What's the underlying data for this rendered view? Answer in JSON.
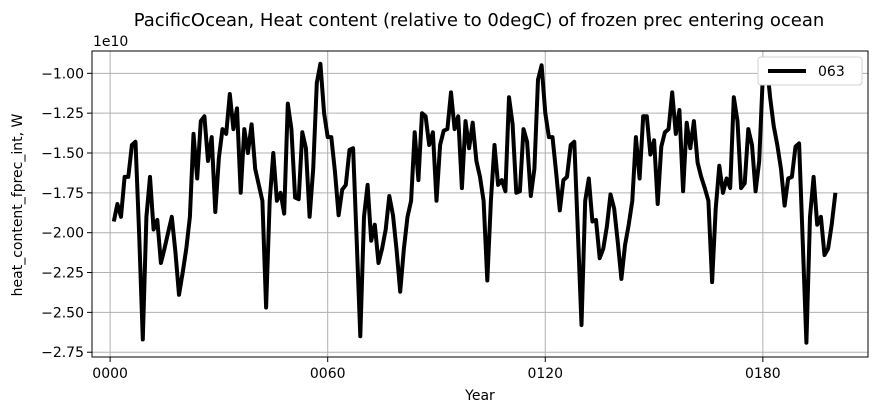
{
  "chart_data": {
    "type": "line",
    "title": "PacificOcean, Heat content (relative to 0degC) of frozen prec entering ocean",
    "xlabel": "Year",
    "ylabel": "heat_content_fprec_int, W",
    "y_offset_label": "1e10",
    "xlim": [
      -5,
      209
    ],
    "ylim": [
      -2.78,
      -0.86
    ],
    "x_ticks": [
      0,
      60,
      120,
      180
    ],
    "x_tick_labels": [
      "0000",
      "0060",
      "0120",
      "0180"
    ],
    "y_ticks": [
      -2.75,
      -2.5,
      -2.25,
      -2.0,
      -1.75,
      -1.5,
      -1.25,
      -1.0
    ],
    "y_tick_labels": [
      "−2.75",
      "−2.50",
      "−2.25",
      "−2.00",
      "−1.75",
      "−1.50",
      "−1.25",
      "−1.00"
    ],
    "grid": true,
    "legend_position": "top-right",
    "series": [
      {
        "name": "063",
        "color": "#000000",
        "x": [
          1,
          2,
          3,
          4,
          5,
          6,
          7,
          8,
          9,
          10,
          11,
          12,
          13,
          14,
          15,
          16,
          17,
          18,
          19,
          20,
          21,
          22,
          23,
          24,
          25,
          26,
          27,
          28,
          29,
          30,
          31,
          32,
          33,
          34,
          35,
          36,
          37,
          38,
          39,
          40,
          41,
          42,
          43,
          44,
          45,
          46,
          47,
          48,
          49,
          50,
          51,
          52,
          53,
          54,
          55,
          56,
          57,
          58,
          59,
          60,
          61,
          62,
          63,
          64,
          65,
          66,
          67,
          68,
          69,
          70,
          71,
          72,
          73,
          74,
          75,
          76,
          77,
          78,
          79,
          80,
          81,
          82,
          83,
          84,
          85,
          86,
          87,
          88,
          89,
          90,
          91,
          92,
          93,
          94,
          95,
          96,
          97,
          98,
          99,
          100,
          101,
          102,
          103,
          104,
          105,
          106,
          107,
          108,
          109,
          110,
          111,
          112,
          113,
          114,
          115,
          116,
          117,
          118,
          119,
          120,
          121,
          122,
          123,
          124,
          125,
          126,
          127,
          128,
          129,
          130,
          131,
          132,
          133,
          134,
          135,
          136,
          137,
          138,
          139,
          140,
          141,
          142,
          143,
          144,
          145,
          146,
          147,
          148,
          149,
          150,
          151,
          152,
          153,
          154,
          155,
          156,
          157,
          158,
          159,
          160,
          161,
          162,
          163,
          164,
          165,
          166,
          167,
          168,
          169,
          170,
          171,
          172,
          173,
          174,
          175,
          176,
          177,
          178,
          179,
          180,
          181,
          182,
          183,
          184,
          185,
          186,
          187,
          188,
          189,
          190,
          191,
          192,
          193,
          194,
          195,
          196,
          197,
          198,
          199,
          200
        ],
        "y": [
          -1.93,
          -1.82,
          -1.9,
          -1.65,
          -1.65,
          -1.45,
          -1.43,
          -2.0,
          -2.67,
          -1.9,
          -1.65,
          -1.98,
          -1.92,
          -2.19,
          -2.1,
          -2.0,
          -1.9,
          -2.12,
          -2.39,
          -2.25,
          -2.1,
          -1.9,
          -1.38,
          -1.66,
          -1.3,
          -1.27,
          -1.55,
          -1.4,
          -1.87,
          -1.53,
          -1.35,
          -1.38,
          -1.13,
          -1.35,
          -1.22,
          -1.75,
          -1.35,
          -1.5,
          -1.32,
          -1.6,
          -1.7,
          -1.8,
          -2.47,
          -1.8,
          -1.5,
          -1.8,
          -1.75,
          -1.88,
          -1.19,
          -1.35,
          -1.78,
          -1.79,
          -1.37,
          -1.47,
          -1.9,
          -1.6,
          -1.06,
          -0.94,
          -1.25,
          -1.4,
          -1.4,
          -1.62,
          -1.89,
          -1.73,
          -1.7,
          -1.48,
          -1.47,
          -2.05,
          -2.65,
          -1.9,
          -1.7,
          -2.05,
          -1.95,
          -2.19,
          -2.1,
          -1.98,
          -1.77,
          -1.89,
          -2.11,
          -2.37,
          -2.1,
          -1.9,
          -1.8,
          -1.37,
          -1.67,
          -1.25,
          -1.27,
          -1.45,
          -1.37,
          -1.8,
          -1.45,
          -1.36,
          -1.35,
          -1.12,
          -1.35,
          -1.27,
          -1.72,
          -1.3,
          -1.47,
          -1.31,
          -1.55,
          -1.65,
          -1.8,
          -2.3,
          -1.8,
          -1.45,
          -1.7,
          -1.67,
          -1.74,
          -1.15,
          -1.32,
          -1.75,
          -1.74,
          -1.35,
          -1.43,
          -1.77,
          -1.6,
          -1.04,
          -0.95,
          -1.25,
          -1.4,
          -1.4,
          -1.62,
          -1.86,
          -1.67,
          -1.65,
          -1.45,
          -1.43,
          -2.0,
          -2.58,
          -1.8,
          -1.66,
          -1.93,
          -1.92,
          -2.16,
          -2.1,
          -1.96,
          -1.76,
          -1.85,
          -2.06,
          -2.29,
          -2.08,
          -1.95,
          -1.8,
          -1.4,
          -1.66,
          -1.27,
          -1.27,
          -1.51,
          -1.42,
          -1.82,
          -1.46,
          -1.37,
          -1.35,
          -1.12,
          -1.38,
          -1.23,
          -1.74,
          -1.31,
          -1.47,
          -1.3,
          -1.56,
          -1.65,
          -1.72,
          -1.8,
          -2.31,
          -1.85,
          -1.58,
          -1.75,
          -1.66,
          -1.72,
          -1.15,
          -1.3,
          -1.72,
          -1.69,
          -1.35,
          -1.45,
          -1.74,
          -1.55,
          -1.02,
          -0.92,
          -1.15,
          -1.33,
          -1.45,
          -1.6,
          -1.83,
          -1.66,
          -1.65,
          -1.46,
          -1.44,
          -2.05,
          -2.69,
          -1.9,
          -1.65,
          -1.95,
          -1.9,
          -2.14,
          -2.1,
          -1.95,
          -1.75
        ]
      }
    ]
  }
}
